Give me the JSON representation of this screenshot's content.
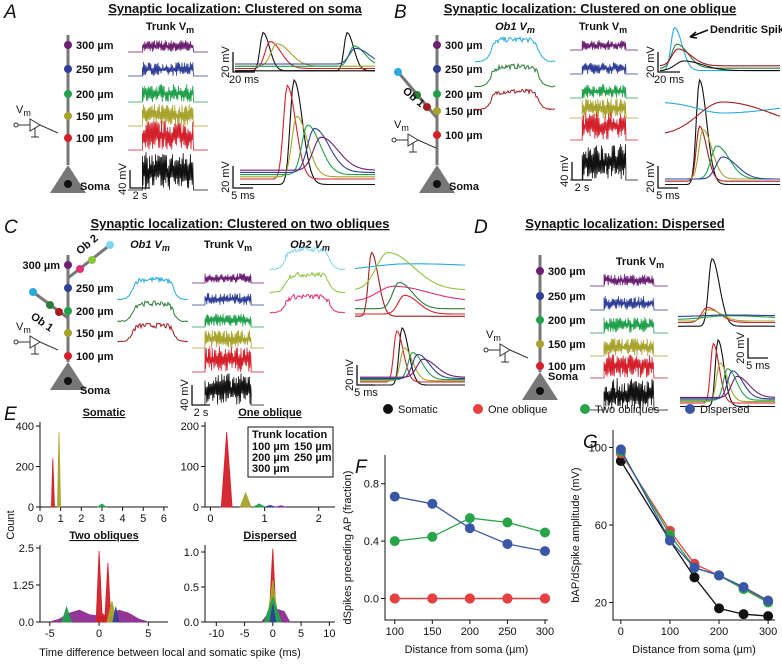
{
  "panels": [
    {
      "letter": "A",
      "title": "Synaptic localization: Clustered on soma",
      "locations": [
        "300 µm",
        "250 µm",
        "200 µm",
        "150 µm",
        "100 µm"
      ],
      "soma": "Soma",
      "vm": {
        "text": "V",
        "sub": "m"
      },
      "columns": [
        {
          "text": "Trunk V",
          "sub": "m"
        }
      ],
      "scale_bars": [
        "40 mV",
        "2 s",
        "20 mV",
        "20 ms",
        "20 mV",
        "5 ms"
      ]
    },
    {
      "letter": "B",
      "title": "Synaptic localization: Clustered on one oblique",
      "locations": [
        "300 µm",
        "250 µm",
        "200 µm",
        "150 µm",
        "100 µm"
      ],
      "soma": "Soma",
      "vm": {
        "text": "V",
        "sub": "m"
      },
      "columns": [
        {
          "text": "Ob1 V",
          "sub": "m"
        },
        {
          "text": "Trunk V",
          "sub": "m"
        }
      ],
      "branches": [
        "Ob 1"
      ],
      "annotation": "Dendritic Spike",
      "scale_bars": [
        "40 mV",
        "2 s",
        "20 mV",
        "20 ms",
        "20 mV",
        "5 ms"
      ]
    },
    {
      "letter": "C",
      "title": "Synaptic localization: Clustered on two obliques",
      "locations": [
        "300 µm",
        "250 µm",
        "200 µm",
        "150 µm",
        "100 µm"
      ],
      "soma": "Soma",
      "vm": {
        "text": "V",
        "sub": "m"
      },
      "columns": [
        {
          "text": "Ob1 V",
          "sub": "m"
        },
        {
          "text": "Trunk V",
          "sub": "m"
        },
        {
          "text": "Ob2 V",
          "sub": "m"
        }
      ],
      "branches": [
        "Ob 1",
        "Ob 2"
      ],
      "scale_bars": [
        "40 mV",
        "2 s",
        "20 mV",
        "5 ms"
      ]
    },
    {
      "letter": "D",
      "title": "Synaptic localization: Dispersed",
      "locations": [
        "300 µm",
        "250 µm",
        "200 µm",
        "150 µm",
        "100 µm"
      ],
      "soma": "Soma",
      "vm": {
        "text": "V",
        "sub": "m"
      },
      "columns": [
        {
          "text": "Trunk V",
          "sub": "m"
        }
      ],
      "scale_bars": [
        "20 mV",
        "5 ms"
      ]
    }
  ],
  "panel_e": {
    "letter": "E",
    "ylabel": "Count",
    "xlabel": "Time difference between local and somatic spike (ms)"
  },
  "chart_data": [
    {
      "type": "area",
      "title": "Somatic",
      "xlim": [
        0,
        6.2
      ],
      "ylim": [
        0,
        420
      ],
      "xticks": [
        0,
        1,
        2,
        3,
        4,
        5,
        6
      ],
      "yticks": [
        0,
        200,
        400
      ],
      "series": [
        {
          "color": "#d3202a",
          "x": [
            0.55,
            0.62,
            0.7
          ],
          "values": [
            0,
            240,
            0
          ]
        },
        {
          "color": "#a8a32c",
          "x": [
            0.85,
            0.92,
            1.0
          ],
          "values": [
            0,
            370,
            0
          ]
        },
        {
          "color": "#20a04b",
          "x": [
            2.8,
            3.0,
            3.2
          ],
          "values": [
            0,
            15,
            0
          ]
        }
      ]
    },
    {
      "type": "area",
      "title": "One oblique",
      "legend_title": "Trunk location",
      "xlim": [
        -0.1,
        2.3
      ],
      "ylim": [
        0,
        210
      ],
      "xticks": [
        0,
        1,
        2
      ],
      "yticks": [
        0,
        100,
        200
      ],
      "series": [
        {
          "name": "100 µm",
          "color": "#d3202a",
          "x": [
            0.2,
            0.3,
            0.4
          ],
          "values": [
            0,
            185,
            0
          ]
        },
        {
          "name": "150 µm",
          "color": "#a8a32c",
          "x": [
            0.55,
            0.65,
            0.75
          ],
          "values": [
            0,
            35,
            0
          ]
        },
        {
          "name": "200 µm",
          "color": "#20a04b",
          "x": [
            0.8,
            0.9,
            1.0
          ],
          "values": [
            0,
            8,
            0
          ]
        },
        {
          "name": "250 µm",
          "color": "#2f3f98",
          "x": [
            1.0,
            1.1,
            1.2
          ],
          "values": [
            0,
            4,
            0
          ]
        },
        {
          "name": "300 µm",
          "color": "#8e2a92",
          "x": [
            1.2,
            1.3,
            1.4
          ],
          "values": [
            0,
            3,
            0
          ]
        }
      ]
    },
    {
      "type": "area",
      "title": "Two obliques",
      "xlim": [
        -6,
        7
      ],
      "ylim": [
        0,
        2.6
      ],
      "xticks": [
        -5,
        0,
        5
      ],
      "yticks": [
        {
          "value": 0,
          "label": "0.0"
        },
        1.25,
        {
          "value": 2.5,
          "label": "2.5"
        }
      ],
      "series": [
        {
          "color": "#8e2a92",
          "x": [
            -5,
            -4,
            -3,
            -2,
            -1,
            0,
            1,
            2,
            3,
            4,
            5
          ],
          "values": [
            0,
            0.1,
            0.3,
            0.4,
            0.25,
            0.2,
            0.15,
            0.4,
            0.3,
            0.1,
            0
          ]
        },
        {
          "color": "#20a04b",
          "x": [
            -3.8,
            -3.3,
            -2.8
          ],
          "values": [
            0,
            0.5,
            0
          ]
        },
        {
          "color": "#d3202a",
          "x": [
            -0.3,
            0,
            0.3,
            0.6,
            0.9,
            1.2
          ],
          "values": [
            0,
            2.4,
            0.3,
            0.2,
            2.0,
            0
          ]
        },
        {
          "color": "#a8a32c",
          "x": [
            0.8,
            1.3,
            1.8
          ],
          "values": [
            0,
            0.7,
            0
          ]
        },
        {
          "color": "#2f3f98",
          "x": [
            1.4,
            1.7,
            2.0
          ],
          "values": [
            0,
            0.5,
            0
          ]
        }
      ]
    },
    {
      "type": "area",
      "title": "Dispersed",
      "xlim": [
        -12,
        11
      ],
      "ylim": [
        0,
        1.1
      ],
      "xticks": [
        -10,
        -5,
        0,
        5,
        10
      ],
      "yticks": [
        {
          "value": 0,
          "label": "0.0"
        },
        0.5,
        {
          "value": 1,
          "label": "1.0"
        }
      ],
      "series": [
        {
          "color": "#8e2a92",
          "x": [
            -2,
            -1,
            0,
            2,
            3
          ],
          "values": [
            0,
            0.1,
            0.2,
            0.15,
            0
          ]
        },
        {
          "color": "#d3202a",
          "x": [
            -1,
            -0.5,
            0,
            0.5,
            1
          ],
          "values": [
            0,
            0.3,
            1.05,
            0.2,
            0
          ]
        },
        {
          "color": "#a8a32c",
          "x": [
            -1,
            0,
            1
          ],
          "values": [
            0,
            0.6,
            0
          ]
        },
        {
          "color": "#20a04b",
          "x": [
            -1.5,
            0,
            1.5
          ],
          "values": [
            0,
            0.35,
            0
          ]
        },
        {
          "color": "#2f3f98",
          "x": [
            -0.5,
            0,
            0.5
          ],
          "values": [
            0,
            0.25,
            0
          ]
        }
      ]
    },
    {
      "type": "line",
      "panel": "F",
      "xlabel": "Distance from soma (µm)",
      "ylabel": "dSpikes preceding AP (fraction)",
      "x": [
        100,
        150,
        200,
        250,
        300
      ],
      "xlim": [
        87,
        304
      ],
      "ylim": [
        -0.15,
        1.0
      ],
      "xticks": [
        100,
        150,
        200,
        250,
        300
      ],
      "yticks": [
        {
          "value": 0,
          "label": "0.0"
        },
        0.4,
        0.8
      ],
      "series": [
        {
          "name": "Somatic",
          "color": "#111111",
          "values": [
            0,
            0,
            0,
            0,
            0
          ]
        },
        {
          "name": "One oblique",
          "color": "#e8403f",
          "values": [
            0,
            0,
            0,
            0,
            0
          ]
        },
        {
          "name": "Two obliques",
          "color": "#27a449",
          "values": [
            0.4,
            0.43,
            0.56,
            0.53,
            0.46
          ]
        },
        {
          "name": "Dispersed",
          "color": "#3a57a7",
          "values": [
            0.71,
            0.66,
            0.49,
            0.38,
            0.33
          ]
        }
      ]
    },
    {
      "type": "line",
      "panel": "G",
      "xlabel": "Distance from soma (µm)",
      "ylabel": "bAP/dSpike amplitude (mV)",
      "x": [
        0,
        100,
        150,
        200,
        250,
        300
      ],
      "xlim": [
        -16,
        314
      ],
      "ylim": [
        11,
        109
      ],
      "xticks": [
        0,
        100,
        200,
        300
      ],
      "yticks": [
        20,
        60,
        100
      ],
      "series": [
        {
          "color": "#111111",
          "values": [
            93,
            52,
            33,
            17,
            14,
            13
          ]
        },
        {
          "color": "#e8403f",
          "values": [
            97,
            57,
            40,
            34,
            27,
            21
          ]
        },
        {
          "color": "#27a449",
          "values": [
            98,
            55,
            38,
            34,
            27,
            20
          ]
        },
        {
          "color": "#3a57a7",
          "values": [
            99,
            52,
            38,
            34,
            28,
            21
          ]
        }
      ]
    }
  ]
}
